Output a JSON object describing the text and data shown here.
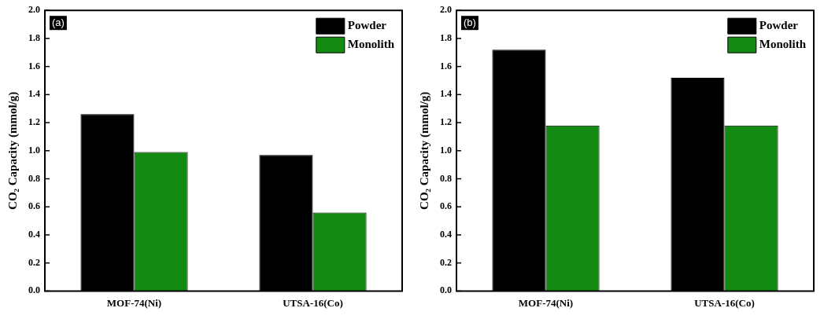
{
  "chart_data": [
    {
      "type": "bar",
      "annotations": [
        "(a)"
      ],
      "ylabel": "CO₂ Capacity (mmol/g)",
      "categories": [
        "MOF-74(Ni)",
        "UTSA-16(Co)"
      ],
      "series": [
        {
          "name": "Powder",
          "color": "#000000",
          "values": [
            1.26,
            0.97
          ]
        },
        {
          "name": "Monolith",
          "color": "#138b13",
          "values": [
            0.99,
            0.56
          ]
        }
      ],
      "ylim": [
        0,
        2
      ],
      "yticks": [
        {
          "value": 0,
          "label": "0.0"
        },
        0.2,
        0.4,
        0.6,
        0.8,
        {
          "value": 1,
          "label": "1.0"
        },
        1.2,
        1.4,
        1.6,
        1.8,
        {
          "value": 2,
          "label": "2.0"
        }
      ],
      "legend": "top right",
      "grid": false
    },
    {
      "type": "bar",
      "annotations": [
        "(b)"
      ],
      "ylabel": "CO₂ Capacity (mmol/g)",
      "categories": [
        "MOF-74(Ni)",
        "UTSA-16(Co)"
      ],
      "series": [
        {
          "name": "Powder",
          "color": "#000000",
          "values": [
            1.72,
            1.52
          ]
        },
        {
          "name": "Monolith",
          "color": "#138b13",
          "values": [
            1.18,
            1.18
          ]
        }
      ],
      "ylim": [
        0,
        2
      ],
      "yticks": [
        {
          "value": 0,
          "label": "0.0"
        },
        0.2,
        0.4,
        0.6,
        0.8,
        {
          "value": 1,
          "label": "1.0"
        },
        1.2,
        1.4,
        1.6,
        1.8,
        {
          "value": 2,
          "label": "2.0"
        }
      ],
      "legend": "top right",
      "grid": false
    }
  ]
}
